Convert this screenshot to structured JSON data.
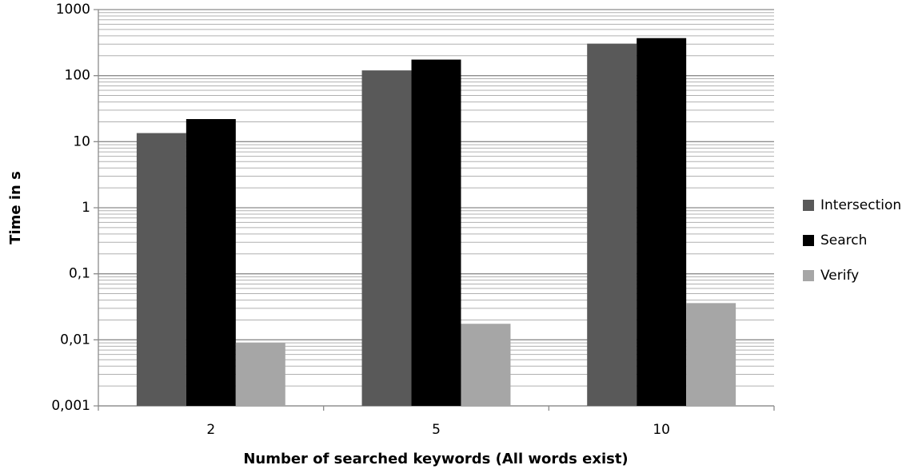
{
  "chart_data": {
    "type": "bar",
    "log_scale": true,
    "grid": true,
    "minor_grid": true,
    "legend": "right",
    "y_label": "Time in s",
    "x_label": "Number of searched keywords (All words exist)",
    "categories": [
      "2",
      "5",
      "10"
    ],
    "series": [
      {
        "name": "Intersection",
        "color": "#595959",
        "values": [
          13.5,
          120,
          305
        ]
      },
      {
        "name": "Search",
        "color": "#000000",
        "values": [
          22,
          175,
          370
        ]
      },
      {
        "name": "Verify",
        "color": "#a6a6a6",
        "values": [
          0.009,
          0.0175,
          0.036
        ]
      }
    ],
    "ylim": [
      0.001,
      1000
    ],
    "yticks": [
      1000,
      100,
      10,
      1,
      {
        "value": 0.1,
        "label": "0,1"
      },
      {
        "value": 0.01,
        "label": "0,01"
      },
      {
        "value": 0.001,
        "label": "0,001"
      }
    ]
  }
}
